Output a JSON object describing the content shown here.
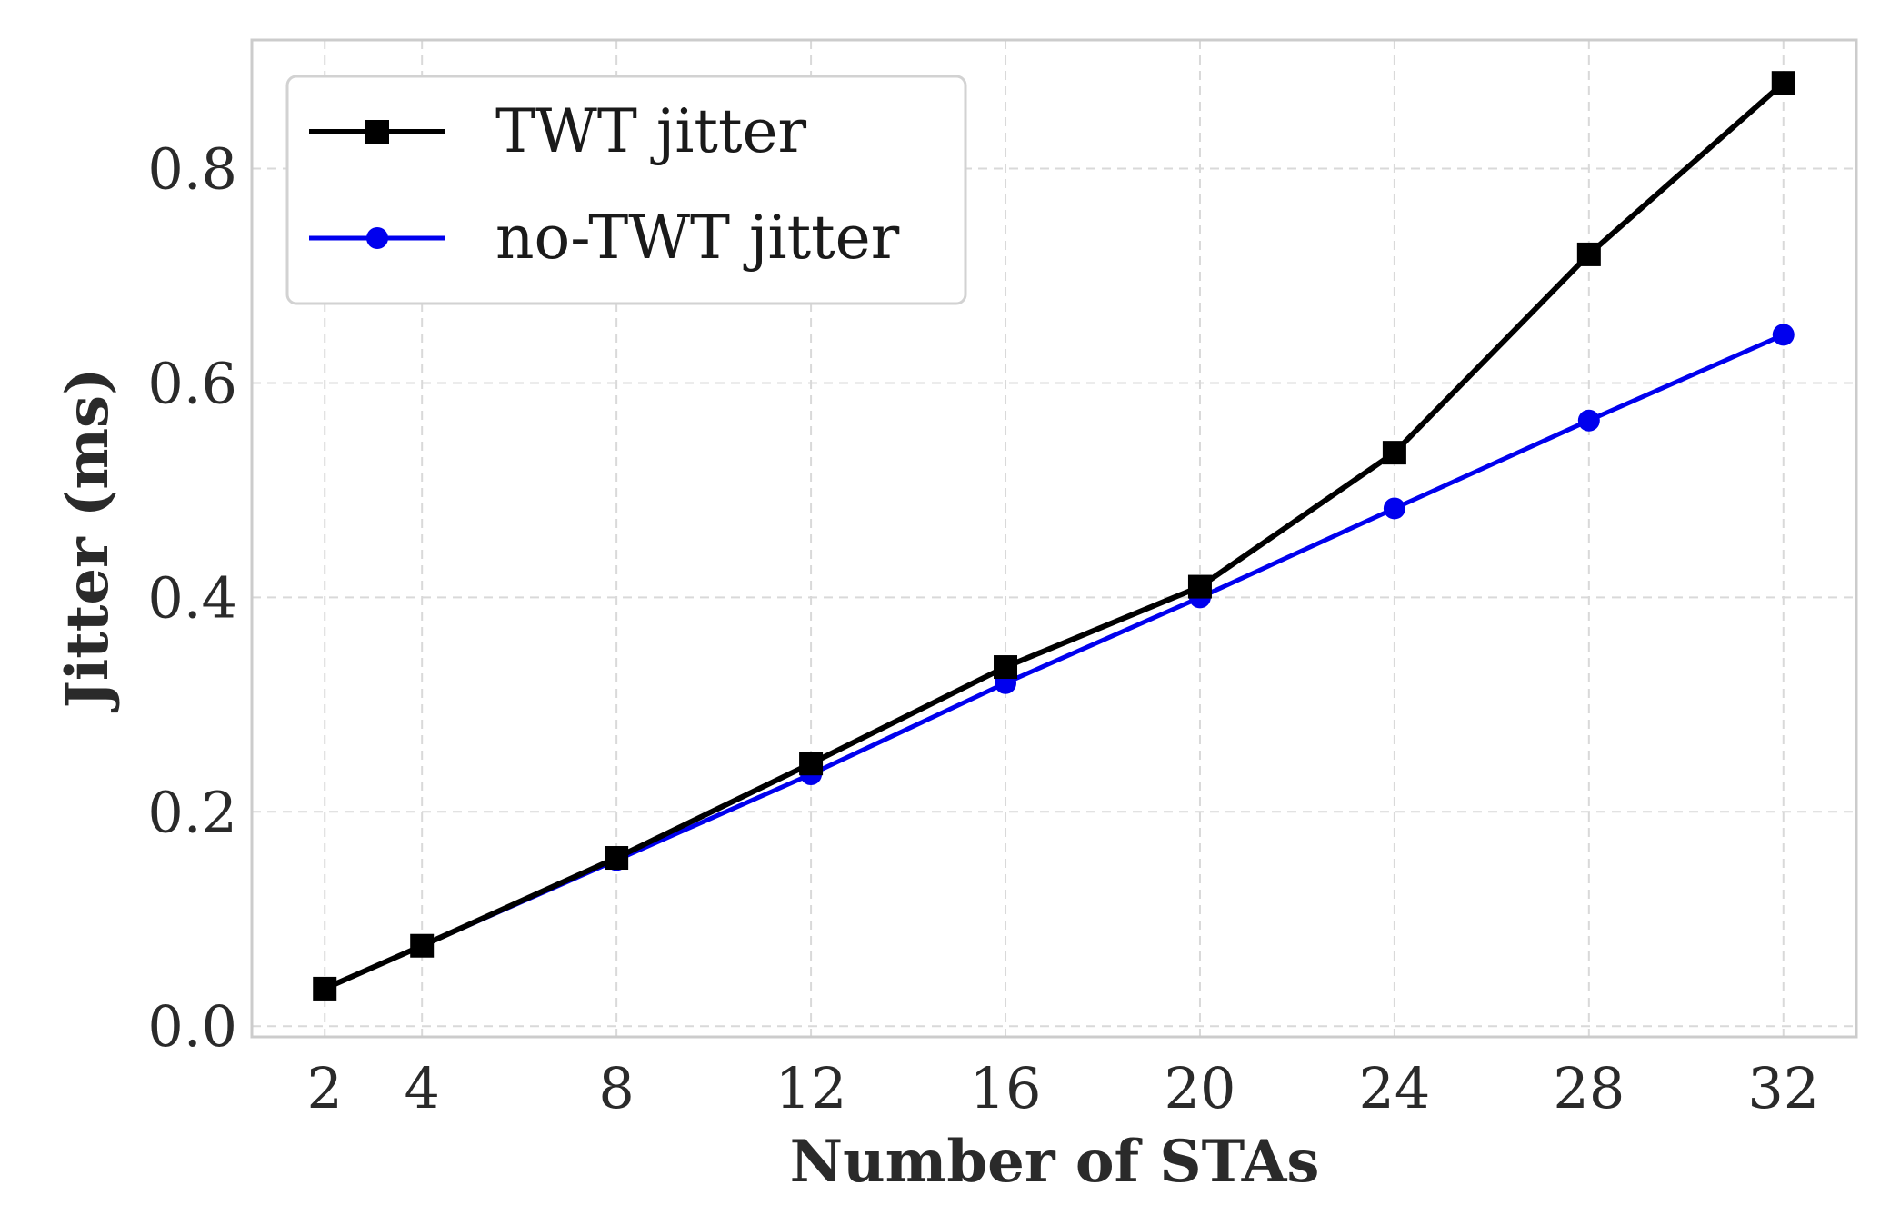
{
  "chart_data": {
    "type": "line",
    "title": "",
    "xlabel": "Number of STAs",
    "ylabel": "Jitter (ms)",
    "x": [
      2,
      4,
      8,
      12,
      16,
      20,
      24,
      28,
      32
    ],
    "x_ticks": [
      "2",
      "4",
      "8",
      "12",
      "16",
      "20",
      "24",
      "28",
      "32"
    ],
    "y_ticks": [
      "0.0",
      "0.2",
      "0.4",
      "0.6",
      "0.8"
    ],
    "y_tick_values": [
      0.0,
      0.2,
      0.4,
      0.6,
      0.8
    ],
    "xlim": [
      0.5,
      33.5
    ],
    "ylim": [
      -0.01,
      0.92
    ],
    "grid": true,
    "legend_position": "top-left",
    "series": [
      {
        "name": "TWT jitter",
        "color": "#000000",
        "marker": "square",
        "values": [
          0.035,
          0.075,
          0.157,
          0.245,
          0.335,
          0.41,
          0.535,
          0.72,
          0.88
        ]
      },
      {
        "name": "no-TWT jitter",
        "color": "#0000ee",
        "marker": "circle",
        "values": [
          0.035,
          0.075,
          0.155,
          0.235,
          0.32,
          0.4,
          0.483,
          0.565,
          0.645
        ]
      }
    ]
  }
}
